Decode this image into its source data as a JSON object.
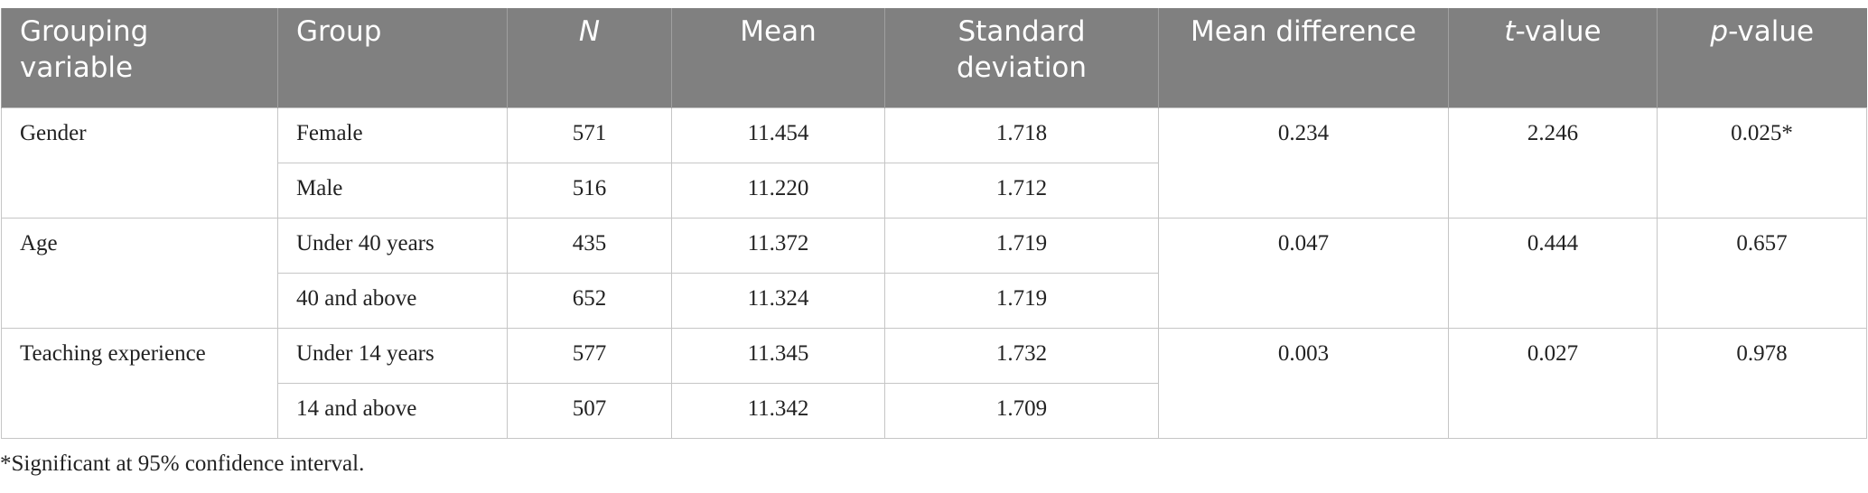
{
  "table": {
    "headers": [
      [
        {
          "text": "Grouping variable"
        }
      ],
      [
        {
          "text": "Group"
        }
      ],
      [
        {
          "text": "N",
          "italic": true
        }
      ],
      [
        {
          "text": "Mean"
        }
      ],
      [
        {
          "text": "Standard deviation"
        }
      ],
      [
        {
          "text": "Mean difference"
        }
      ],
      [
        {
          "text": "t",
          "italic": true
        },
        {
          "text": "-value"
        }
      ],
      [
        {
          "text": "p",
          "italic": true
        },
        {
          "text": "-value"
        }
      ]
    ],
    "sections": [
      {
        "variable": "Gender",
        "mean_difference": "0.234",
        "t_value": "2.246",
        "p_value": "0.025*",
        "rows": [
          [
            "Female",
            "571",
            "11.454",
            "1.718"
          ],
          [
            "Male",
            "516",
            "11.220",
            "1.712"
          ]
        ]
      },
      {
        "variable": "Age",
        "mean_difference": "0.047",
        "t_value": "0.444",
        "p_value": "0.657",
        "rows": [
          [
            "Under 40 years",
            "435",
            "11.372",
            "1.719"
          ],
          [
            "40 and above",
            "652",
            "11.324",
            "1.719"
          ]
        ]
      },
      {
        "variable": "Teaching experience",
        "mean_difference": "0.003",
        "t_value": "0.027",
        "p_value": "0.978",
        "rows": [
          [
            "Under 14 years",
            "577",
            "11.345",
            "1.732"
          ],
          [
            "14 and above",
            "507",
            "11.342",
            "1.709"
          ]
        ]
      }
    ],
    "footnote": "*Significant at 95% confidence interval."
  }
}
